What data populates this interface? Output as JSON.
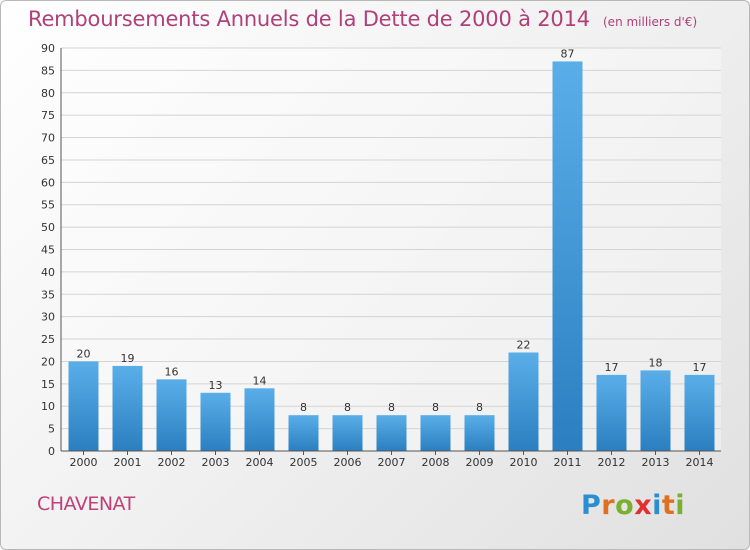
{
  "title": "Remboursements Annuels de la Dette de 2000 à 2014",
  "unit": "(en milliers d'€)",
  "commune": "CHAVENAT",
  "logo": "Proxiti",
  "colors": {
    "title": "#b0407a",
    "bar_top": "#5aaee8",
    "bar_bottom": "#2b7fc0",
    "logo_letters": [
      "#2a8fd0",
      "#e07020",
      "#7ab030",
      "#e03030",
      "#2a8fd0",
      "#e07020",
      "#7ab030"
    ]
  },
  "chart_data": {
    "type": "bar",
    "title": "Remboursements Annuels de la Dette de 2000 à 2014",
    "xlabel": "",
    "ylabel": "",
    "ylim": [
      0,
      90
    ],
    "yticks": [
      0,
      5,
      10,
      15,
      20,
      25,
      30,
      35,
      40,
      45,
      50,
      55,
      60,
      65,
      70,
      75,
      80,
      85,
      90
    ],
    "grid": true,
    "categories": [
      "2000",
      "2001",
      "2002",
      "2003",
      "2004",
      "2005",
      "2006",
      "2007",
      "2008",
      "2009",
      "2010",
      "2011",
      "2012",
      "2013",
      "2014"
    ],
    "values": [
      20,
      19,
      16,
      13,
      14,
      8,
      8,
      8,
      8,
      8,
      22,
      87,
      17,
      18,
      17
    ]
  }
}
